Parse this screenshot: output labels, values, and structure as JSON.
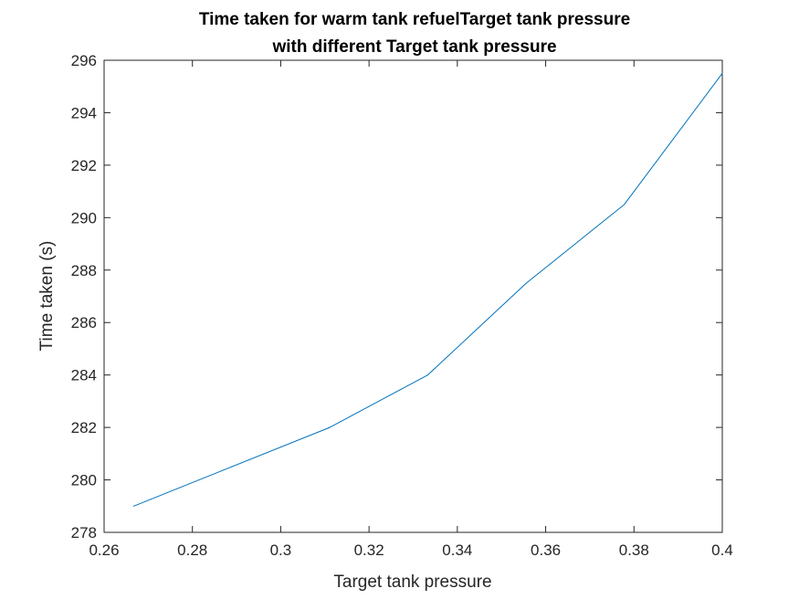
{
  "chart_data": {
    "type": "line",
    "title_lines": [
      "Time taken for warm tank refuelTarget tank pressure",
      "with different Target tank pressure"
    ],
    "xlabel": "Target tank pressure",
    "ylabel": "Time taken (s)",
    "xlim": [
      0.26,
      0.4
    ],
    "ylim": [
      278,
      296
    ],
    "x_ticks": [
      0.26,
      0.28,
      0.3,
      0.32,
      0.34,
      0.36,
      0.38,
      0.4
    ],
    "x_tick_labels": [
      "0.26",
      "0.28",
      "0.3",
      "0.32",
      "0.34",
      "0.36",
      "0.38",
      "0.4"
    ],
    "y_ticks": [
      278,
      280,
      282,
      284,
      286,
      288,
      290,
      292,
      294,
      296
    ],
    "y_tick_labels": [
      "278",
      "280",
      "282",
      "284",
      "286",
      "288",
      "290",
      "292",
      "294",
      "296"
    ],
    "grid": false,
    "series": [
      {
        "x": [
          0.2667,
          0.2889,
          0.3111,
          0.3333,
          0.3556,
          0.3778,
          0.4
        ],
        "y": [
          279,
          280.5,
          282,
          284,
          287.5,
          290.5,
          295.5
        ],
        "color": "#0072BD"
      }
    ]
  }
}
